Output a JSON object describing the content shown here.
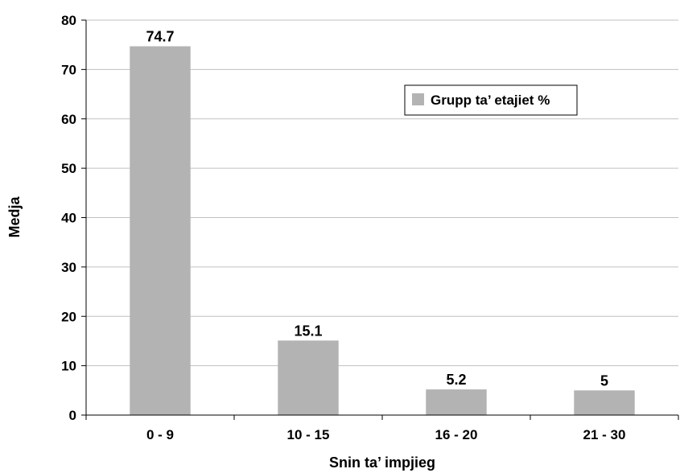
{
  "chart_data": {
    "type": "bar",
    "categories": [
      "0 - 9",
      "10 - 15",
      "16 - 20",
      "21 - 30"
    ],
    "series": [
      {
        "name": "Grupp ta’ etajiet %",
        "values": [
          74.7,
          15.1,
          5.2,
          5
        ]
      }
    ],
    "value_labels": [
      "74.7",
      "15.1",
      "5.2",
      "5"
    ],
    "xlabel": "Snin ta’ impjieg",
    "ylabel": "Medja",
    "ylim": [
      0,
      80
    ],
    "yticks": [
      0,
      10,
      20,
      30,
      40,
      50,
      60,
      70,
      80
    ],
    "grid": true,
    "legend_position": "top-right",
    "colors": {
      "bar": "#b3b3b3",
      "grid": "#c0c0c0",
      "axis": "#000000"
    }
  }
}
